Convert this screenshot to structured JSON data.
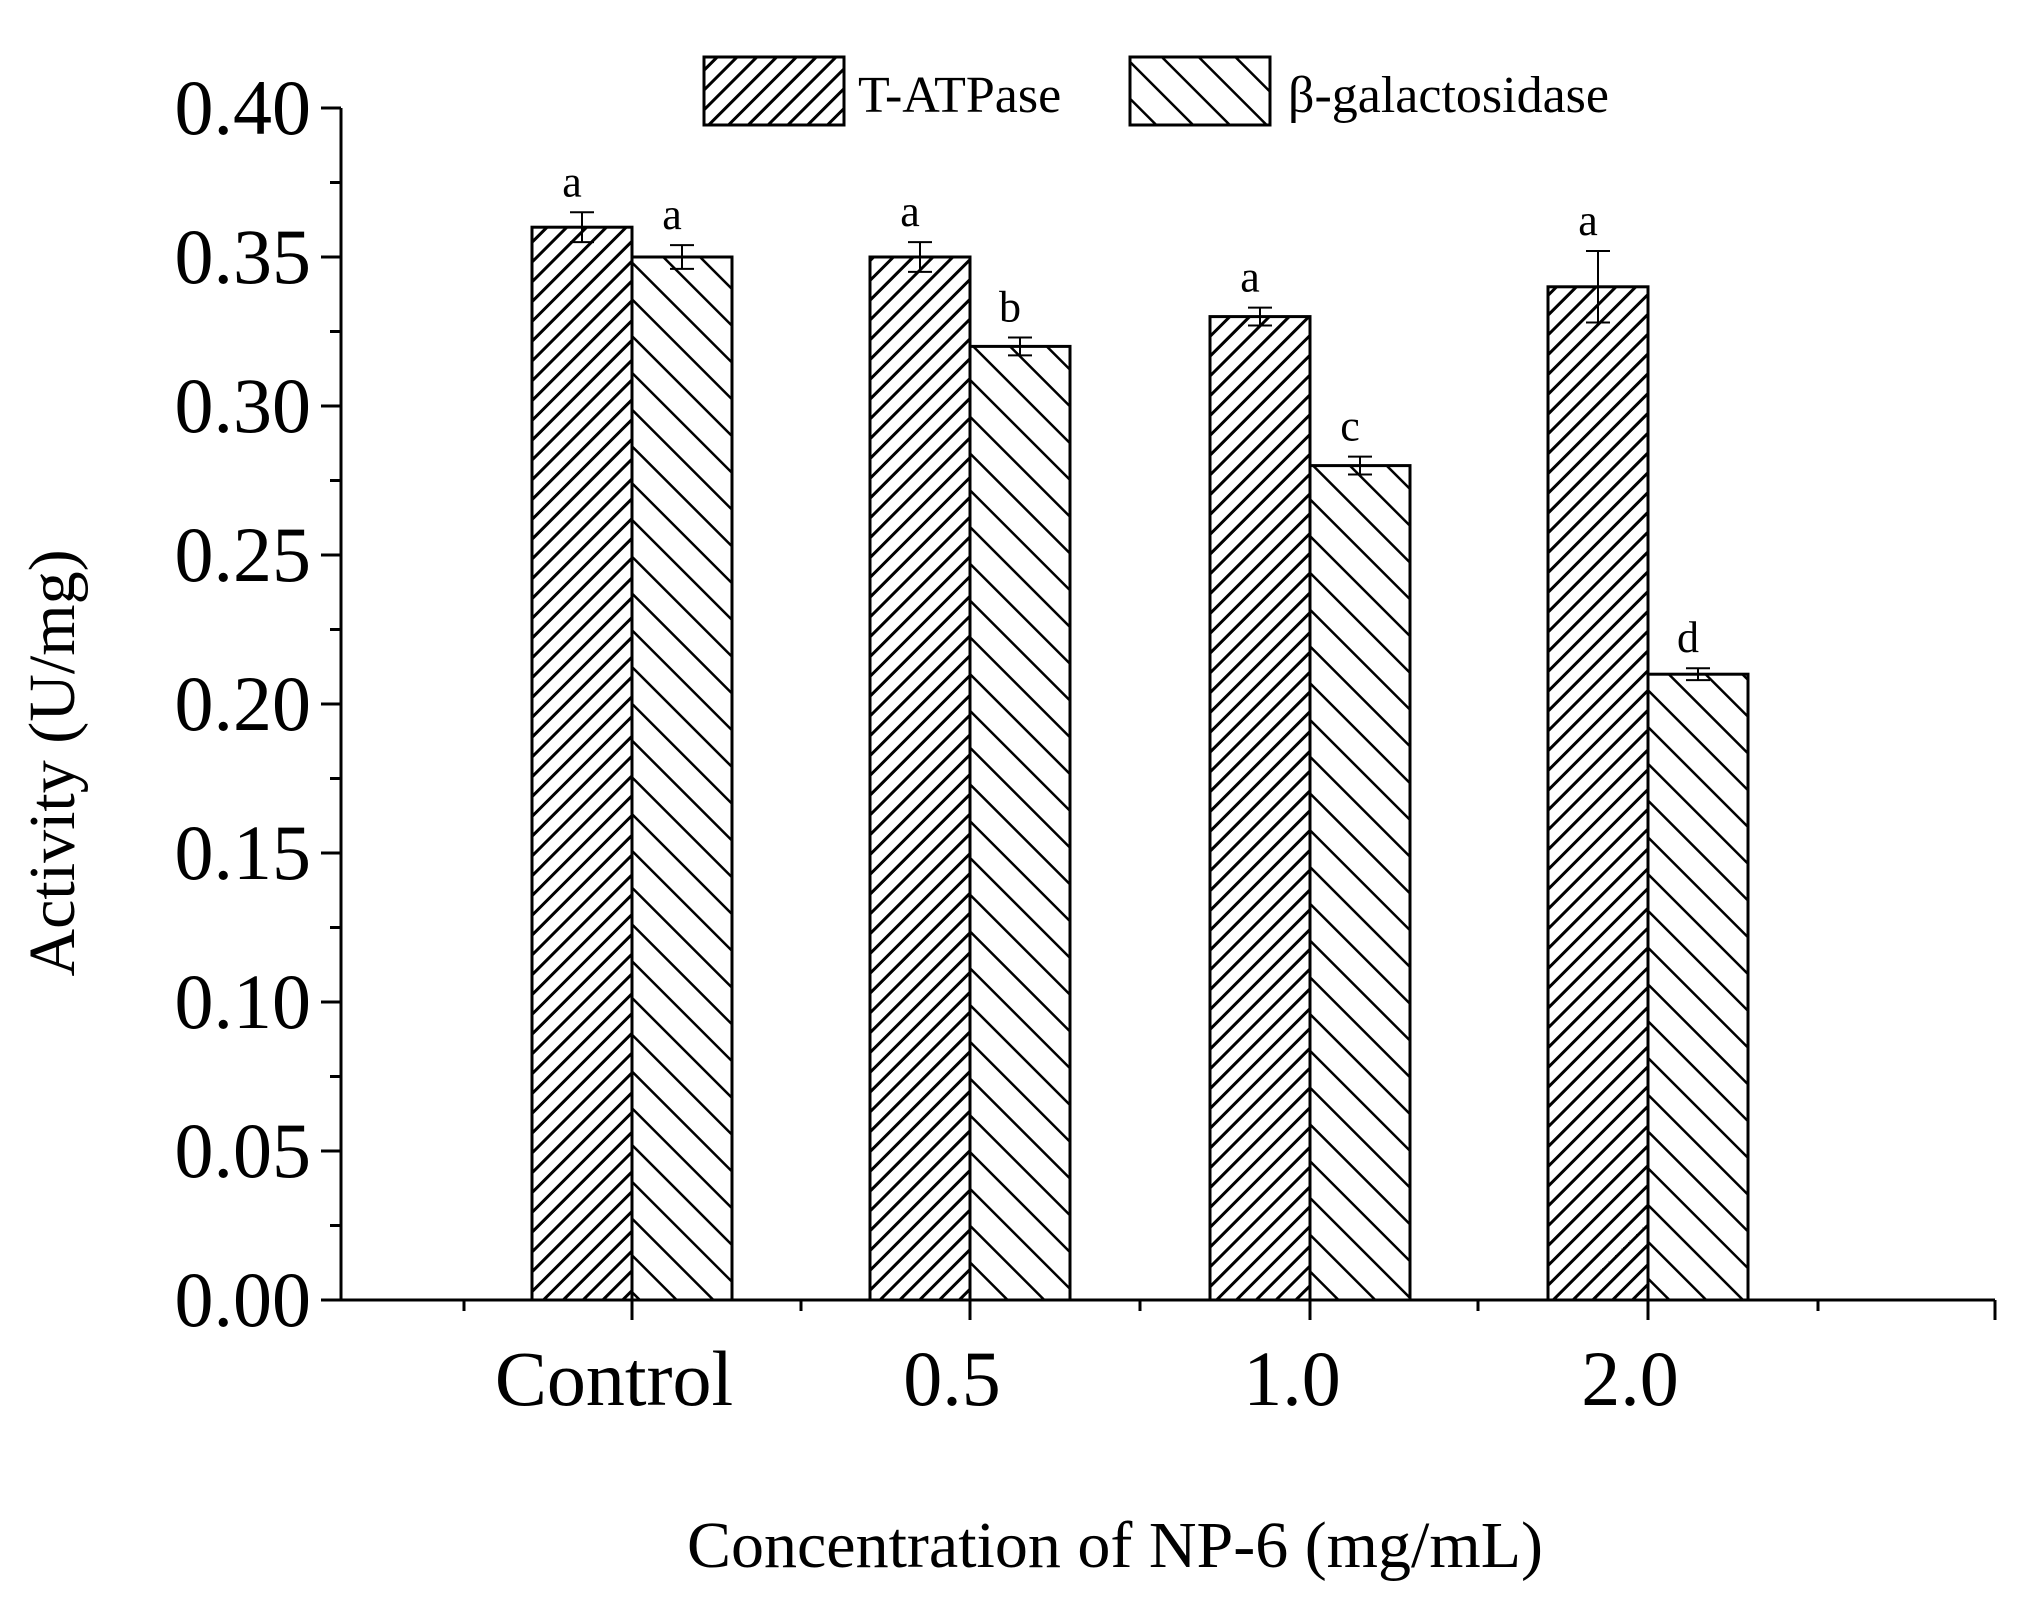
{
  "chart_data": {
    "type": "bar",
    "title": "",
    "xlabel": "Concentration of NP-6 (mg/mL)",
    "ylabel": "Activity (U/mg)",
    "ylim": [
      0,
      0.4
    ],
    "yticks": [
      "0.00",
      "0.05",
      "0.10",
      "0.15",
      "0.20",
      "0.25",
      "0.30",
      "0.35",
      "0.40"
    ],
    "categories": [
      "Control",
      "0.5",
      "1.0",
      "2.0"
    ],
    "series": [
      {
        "name": "T-ATPase",
        "values": [
          0.36,
          0.35,
          0.33,
          0.34
        ],
        "errors": [
          0.005,
          0.005,
          0.003,
          0.012
        ],
        "letters": [
          "a",
          "a",
          "a",
          "a"
        ],
        "hatch": "forward-dense"
      },
      {
        "name": "β-galactosidase",
        "values": [
          0.35,
          0.32,
          0.28,
          0.21
        ],
        "errors": [
          0.004,
          0.003,
          0.003,
          0.002
        ],
        "letters": [
          "a",
          "b",
          "c",
          "d"
        ],
        "hatch": "backward-sparse"
      }
    ],
    "legend_position": "top",
    "grid": false
  }
}
